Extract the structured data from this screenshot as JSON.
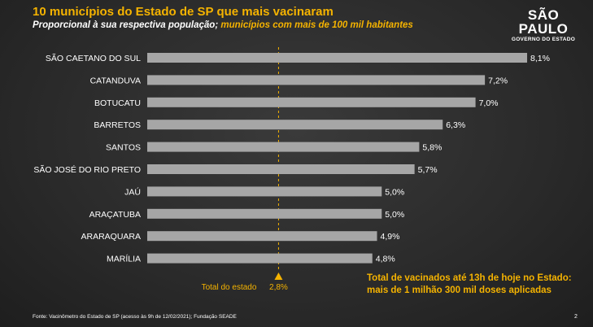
{
  "header": {
    "title": "10 municípios do Estado de SP que mais vacinaram",
    "subtitle_main": "Proporcional à sua respectiva população;",
    "subtitle_highlight": " municípios com mais de 100 mil habitantes"
  },
  "logo": {
    "main": "SÃO PAULO",
    "sub": "GOVERNO DO ESTADO"
  },
  "chart_data": {
    "type": "bar",
    "orientation": "horizontal",
    "categories": [
      "SÃO CAETANO DO SUL",
      "CATANDUVA",
      "BOTUCATU",
      "BARRETOS",
      "SANTOS",
      "SÃO JOSÉ DO RIO PRETO",
      "JAÚ",
      "ARAÇATUBA",
      "ARARAQUARA",
      "MARÍLIA"
    ],
    "values": [
      8.1,
      7.2,
      7.0,
      6.3,
      5.8,
      5.7,
      5.0,
      5.0,
      4.9,
      4.8
    ],
    "value_labels": [
      "8,1%",
      "7,2%",
      "7,0%",
      "6,3%",
      "5,8%",
      "5,7%",
      "5,0%",
      "5,0%",
      "4,9%",
      "4,8%"
    ],
    "reference_line": {
      "value": 2.8,
      "label": "Total do estado",
      "value_label": "2,8%"
    },
    "xlim": [
      0,
      8.1
    ],
    "grid": false,
    "bar_color": "#a6a6a6",
    "accent_color": "#f5b300"
  },
  "note": {
    "line1": "Total de vacinados até 13h de hoje no Estado:",
    "line2": "mais de 1 milhão 300 mil doses aplicadas"
  },
  "footer": {
    "source": "Fonte: Vacinômetro do Estado de SP (acesso às 9h de 12/02/2021); Fundação SEADE",
    "page": "2"
  }
}
